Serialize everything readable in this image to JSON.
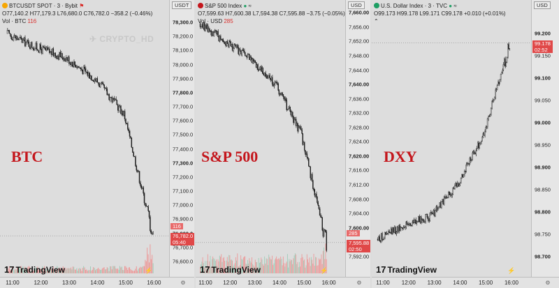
{
  "panels": [
    {
      "symbol_line": "BTCUSDT SPOT · 3 · Bybit",
      "ohlc": "O77,140.2 H77,179.3 L76,680.0 C76,782.0 −358.2 (−0.46%)",
      "vol_label": "Vol · BTC",
      "vol_value": "116",
      "unit": "USDT",
      "big_label": "BTC",
      "watermark": "CRYPTO_HD",
      "yticks": [
        "78,300.0",
        "78,200.0",
        "78,100.0",
        "78,000.0",
        "77,900.0",
        "77,800.0",
        "77,700.0",
        "77,600.0",
        "77,500.0",
        "77,400.0",
        "77,300.0",
        "77,200.0",
        "77,100.0",
        "77,000.0",
        "76,900.0",
        "76,800.0",
        "76,700.0",
        "76,600.0"
      ],
      "xticks": [
        "11:00",
        "12:00",
        "13:00",
        "14:00",
        "15:00",
        "16:00"
      ],
      "vol_tag": "116",
      "price_tag": "76,782.0",
      "time_tag": "05:40",
      "symbol_color": "#f7a600"
    },
    {
      "symbol_line": "S&P 500 Index",
      "ohlc": "O7,599.63 H7,600.38 L7,594.38 C7,595.88 −3.75 (−0.05%)",
      "vol_label": "Vol · USD",
      "vol_value": "285",
      "unit": "USD",
      "big_label": "S&P 500",
      "yticks": [
        "7,660.00",
        "7,656.00",
        "7,652.00",
        "7,648.00",
        "7,644.00",
        "7,640.00",
        "7,636.00",
        "7,632.00",
        "7,628.00",
        "7,624.00",
        "7,620.00",
        "7,616.00",
        "7,612.00",
        "7,608.00",
        "7,604.00",
        "7,600.00",
        "7,596.00",
        "7,592.00"
      ],
      "xticks": [
        "11:00",
        "12:00",
        "13:00",
        "14:00",
        "15:00",
        "16:00"
      ],
      "vol_tag": "285",
      "price_tag": "7,595.88",
      "time_tag": "02:50",
      "symbol_color": "#c4161c"
    },
    {
      "symbol_line": "U.S. Dollar Index · 3 · TVC",
      "ohlc": "O99.173 H99.178 L99.171 C99.178 +0.010 (+0.01%)",
      "unit": "USD",
      "big_label": "DXY",
      "yticks": [
        "99.200",
        "99.150",
        "99.100",
        "99.050",
        "99.000",
        "98.950",
        "98.900",
        "98.850",
        "98.800",
        "98.750",
        "98.700"
      ],
      "xticks": [
        "11:00",
        "12:00",
        "13:00",
        "14:00",
        "15:00",
        "16:00"
      ],
      "price_tag": "99.178",
      "time_tag": "02:52",
      "symbol_color": "#1e9e63"
    }
  ],
  "brand": "TradingView",
  "brand_mark": "17",
  "colors": {
    "up": "#1f1f1f",
    "down": "#1f1f1f",
    "vol_up": "#8fc9b0",
    "vol_down": "#f08a8a",
    "price_tag": "#e04848"
  },
  "chart_data": [
    {
      "type": "line",
      "title": "BTCUSDT SPOT · 3 · Bybit",
      "x": [
        "11:00",
        "12:00",
        "13:00",
        "14:00",
        "15:00",
        "15:40"
      ],
      "values": [
        78220,
        78120,
        78050,
        77900,
        77650,
        76782
      ],
      "ylim": [
        76550,
        78330
      ]
    },
    {
      "type": "line",
      "title": "S&P 500 Index",
      "x": [
        "11:00",
        "12:00",
        "13:00",
        "14:00",
        "15:00",
        "15:50"
      ],
      "values": [
        7657,
        7652,
        7647,
        7640,
        7626,
        7595.88
      ],
      "ylim": [
        7590,
        7662
      ]
    },
    {
      "type": "line",
      "title": "U.S. Dollar Index · 3 · TVC",
      "x": [
        "11:00",
        "12:00",
        "13:00",
        "14:00",
        "15:00",
        "15:50"
      ],
      "values": [
        98.74,
        98.77,
        98.79,
        98.86,
        98.97,
        99.178
      ],
      "ylim": [
        98.685,
        99.215
      ]
    }
  ]
}
